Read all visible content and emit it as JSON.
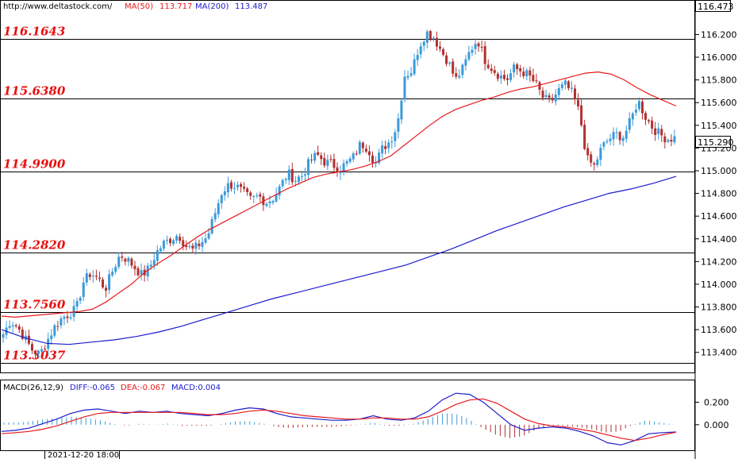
{
  "header": {
    "url": "http://www.deltastock.com/",
    "ma50_label": "MA(50)",
    "ma50_value": "113.717",
    "ma200_label": "MA(200)",
    "ma200_value": "113.487",
    "top_price": "116.473",
    "current_price": "115.290"
  },
  "macd_header": {
    "name": "MACD(26,12,9)",
    "diff": "DIFF:-0.065",
    "dea": "DEA:-0.067",
    "macd": "MACD:0.004"
  },
  "time_label": "2021-12-20 18:00",
  "colors": {
    "ma50": "#e8191c",
    "ma200": "#1c1ccc",
    "up": "#3a9ad9",
    "down": "#b23030",
    "level": "#e81010",
    "macd_pos": "#3a9ad9",
    "macd_neg": "#b23030"
  },
  "chart_data": [
    {
      "type": "candlestick",
      "ylim": [
        113.23,
        116.49
      ],
      "y_ticks": [
        "116.200",
        "116.000",
        "115.800",
        "115.600",
        "115.400",
        "115.200",
        "115.000",
        "114.800",
        "114.600",
        "114.400",
        "114.200",
        "114.000",
        "113.800",
        "113.600",
        "113.400"
      ],
      "levels": [
        {
          "value": 116.1643,
          "label": "116.1643"
        },
        {
          "value": 115.638,
          "label": "115.6380"
        },
        {
          "value": 114.99,
          "label": "114.9900"
        },
        {
          "value": 114.282,
          "label": "114.2820"
        },
        {
          "value": 113.756,
          "label": "113.7560"
        },
        {
          "value": 113.3037,
          "label": "113.3037"
        }
      ],
      "price_path": [
        113.56,
        113.68,
        113.62,
        113.52,
        113.42,
        113.38,
        113.5,
        113.62,
        113.7,
        113.74,
        113.78,
        114.02,
        114.1,
        114.05,
        113.96,
        114.12,
        114.26,
        114.22,
        114.15,
        114.08,
        114.14,
        114.28,
        114.36,
        114.4,
        114.44,
        114.34,
        114.3,
        114.36,
        114.42,
        114.62,
        114.82,
        114.88,
        114.86,
        114.8,
        114.74,
        114.78,
        114.72,
        114.76,
        114.86,
        114.98,
        114.92,
        114.96,
        115.08,
        115.14,
        115.08,
        115.06,
        115.02,
        115.06,
        115.12,
        115.24,
        115.2,
        115.06,
        115.2,
        115.26,
        115.4,
        115.84,
        115.88,
        116.1,
        116.22,
        116.18,
        116.06,
        115.96,
        115.8,
        115.9,
        116.06,
        116.16,
        115.98,
        115.9,
        115.84,
        115.8,
        115.9,
        115.88,
        115.84,
        115.76,
        115.64,
        115.6,
        115.7,
        115.76,
        115.68,
        115.5,
        115.1,
        115.04,
        115.2,
        115.28,
        115.32,
        115.3,
        115.44,
        115.62,
        115.48,
        115.38,
        115.32,
        115.28,
        115.29
      ],
      "ma50": [
        113.72,
        113.71,
        113.72,
        113.73,
        113.74,
        113.75,
        113.76,
        113.78,
        113.84,
        113.92,
        114.0,
        114.1,
        114.18,
        114.25,
        114.33,
        114.41,
        114.48,
        114.54,
        114.6,
        114.66,
        114.72,
        114.78,
        114.84,
        114.89,
        114.94,
        114.97,
        114.99,
        115.01,
        115.04,
        115.08,
        115.13,
        115.22,
        115.31,
        115.4,
        115.48,
        115.54,
        115.58,
        115.62,
        115.65,
        115.69,
        115.72,
        115.74,
        115.77,
        115.8,
        115.83,
        115.86,
        115.87,
        115.85,
        115.8,
        115.73,
        115.67,
        115.62,
        115.57
      ],
      "ma200": [
        113.6,
        113.53,
        113.48,
        113.47,
        113.49,
        113.51,
        113.54,
        113.58,
        113.63,
        113.69,
        113.75,
        113.81,
        113.87,
        113.92,
        113.97,
        114.02,
        114.07,
        114.12,
        114.17,
        114.24,
        114.31,
        114.39,
        114.47,
        114.54,
        114.61,
        114.68,
        114.74,
        114.8,
        114.84,
        114.89,
        114.95
      ]
    },
    {
      "type": "macd",
      "ylim": [
        -0.22,
        0.38
      ],
      "y_ticks": [
        "0.200",
        "0.000"
      ],
      "diff": [
        -0.06,
        -0.05,
        -0.03,
        0.01,
        0.05,
        0.1,
        0.13,
        0.14,
        0.12,
        0.1,
        0.12,
        0.11,
        0.12,
        0.1,
        0.09,
        0.08,
        0.1,
        0.13,
        0.15,
        0.14,
        0.1,
        0.07,
        0.06,
        0.05,
        0.04,
        0.04,
        0.05,
        0.08,
        0.05,
        0.04,
        0.06,
        0.12,
        0.22,
        0.28,
        0.27,
        0.2,
        0.1,
        0.0,
        -0.05,
        -0.03,
        -0.02,
        -0.03,
        -0.06,
        -0.1,
        -0.16,
        -0.18,
        -0.14,
        -0.08,
        -0.07,
        -0.065
      ],
      "dea": [
        -0.08,
        -0.07,
        -0.06,
        -0.04,
        -0.01,
        0.03,
        0.07,
        0.1,
        0.11,
        0.11,
        0.11,
        0.11,
        0.11,
        0.11,
        0.1,
        0.09,
        0.09,
        0.1,
        0.12,
        0.13,
        0.12,
        0.1,
        0.08,
        0.07,
        0.06,
        0.05,
        0.05,
        0.06,
        0.06,
        0.05,
        0.05,
        0.07,
        0.12,
        0.18,
        0.22,
        0.23,
        0.19,
        0.12,
        0.05,
        0.01,
        -0.01,
        -0.02,
        -0.04,
        -0.06,
        -0.09,
        -0.12,
        -0.14,
        -0.12,
        -0.09,
        -0.067
      ]
    }
  ]
}
